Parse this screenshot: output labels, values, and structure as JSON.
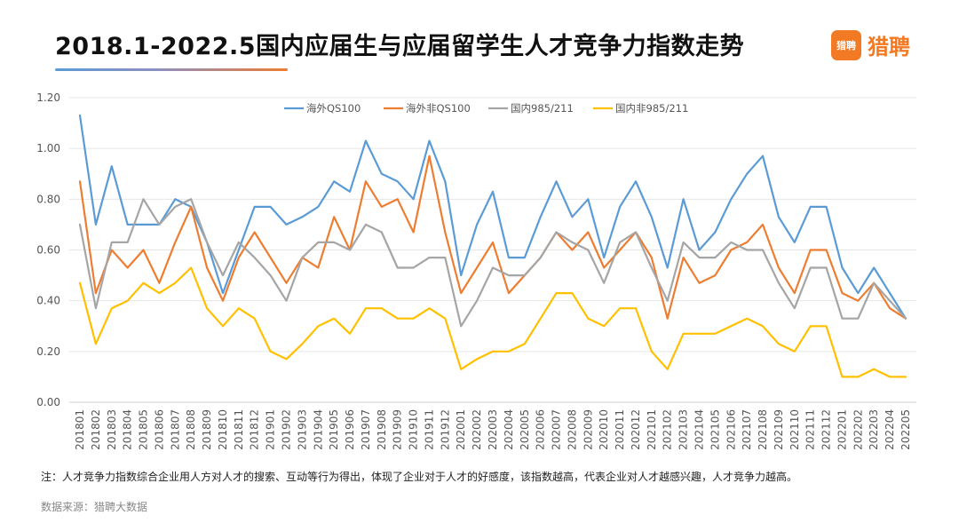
{
  "header": {
    "title": "2018.1-2022.5国内应届生与应届留学生人才竞争力指数走势",
    "brand_name": "猎聘",
    "brand_icon": "猎聘"
  },
  "footer": {
    "note": "注：人才竞争力指数综合企业用人方对人才的搜索、互动等行为得出，体现了企业对于人才的好感度，该指数越高，代表企业对人才越感兴趣，人才竞争力越高。",
    "source": "数据来源：猎聘大数据"
  },
  "chart_data": {
    "type": "line",
    "title": "2018.1-2022.5国内应届生与应届留学生人才竞争力指数走势",
    "xlabel": "",
    "ylabel": "",
    "ylim": [
      0,
      1.2
    ],
    "yticks": [
      "0.00",
      "0.20",
      "0.40",
      "0.60",
      "0.80",
      "1.00",
      "1.20"
    ],
    "grid": true,
    "legend_position": "top",
    "categories": [
      "201801",
      "201802",
      "201803",
      "201804",
      "201805",
      "201806",
      "201807",
      "201808",
      "201809",
      "201810",
      "201811",
      "201812",
      "201901",
      "201902",
      "201903",
      "201904",
      "201905",
      "201906",
      "201907",
      "201908",
      "201909",
      "201910",
      "201911",
      "201912",
      "202001",
      "202002",
      "202003",
      "202004",
      "202005",
      "202006",
      "202007",
      "202008",
      "202009",
      "202010",
      "202011",
      "202012",
      "202101",
      "202102",
      "202103",
      "202104",
      "202105",
      "202106",
      "202107",
      "202108",
      "202109",
      "202110",
      "202111",
      "202112",
      "202201",
      "202202",
      "202203",
      "202204",
      "202205"
    ],
    "series": [
      {
        "name": "海外QS100",
        "color": "#5b9bd5",
        "values": [
          1.13,
          0.7,
          0.93,
          0.7,
          0.7,
          0.7,
          0.8,
          0.77,
          0.63,
          0.43,
          0.6,
          0.77,
          0.77,
          0.7,
          0.73,
          0.77,
          0.87,
          0.83,
          1.03,
          0.9,
          0.87,
          0.8,
          1.03,
          0.87,
          0.5,
          0.7,
          0.83,
          0.57,
          0.57,
          0.73,
          0.87,
          0.73,
          0.8,
          0.57,
          0.77,
          0.87,
          0.73,
          0.53,
          0.8,
          0.6,
          0.67,
          0.8,
          0.9,
          0.97,
          0.73,
          0.63,
          0.77,
          0.77,
          0.53,
          0.43,
          0.53,
          0.43,
          0.33
        ]
      },
      {
        "name": "海外非QS100",
        "color": "#ed7d31",
        "values": [
          0.87,
          0.43,
          0.6,
          0.53,
          0.6,
          0.47,
          0.63,
          0.77,
          0.53,
          0.4,
          0.57,
          0.67,
          0.57,
          0.47,
          0.57,
          0.53,
          0.73,
          0.6,
          0.87,
          0.77,
          0.8,
          0.67,
          0.97,
          0.67,
          0.43,
          0.53,
          0.63,
          0.43,
          0.5,
          0.57,
          0.67,
          0.6,
          0.67,
          0.53,
          0.6,
          0.67,
          0.57,
          0.33,
          0.57,
          0.47,
          0.5,
          0.6,
          0.63,
          0.7,
          0.53,
          0.43,
          0.6,
          0.6,
          0.43,
          0.4,
          0.47,
          0.37,
          0.33
        ]
      },
      {
        "name": "国内985/211",
        "color": "#a5a5a5",
        "values": [
          0.7,
          0.37,
          0.63,
          0.63,
          0.8,
          0.7,
          0.77,
          0.8,
          0.63,
          0.5,
          0.63,
          0.57,
          0.5,
          0.4,
          0.57,
          0.63,
          0.63,
          0.6,
          0.7,
          0.67,
          0.53,
          0.53,
          0.57,
          0.57,
          0.3,
          0.4,
          0.53,
          0.5,
          0.5,
          0.57,
          0.67,
          0.63,
          0.6,
          0.47,
          0.63,
          0.67,
          0.53,
          0.4,
          0.63,
          0.57,
          0.57,
          0.63,
          0.6,
          0.6,
          0.47,
          0.37,
          0.53,
          0.53,
          0.33,
          0.33,
          0.47,
          0.4,
          0.33
        ]
      },
      {
        "name": "国内非985/211",
        "color": "#ffc000",
        "values": [
          0.47,
          0.23,
          0.37,
          0.4,
          0.47,
          0.43,
          0.47,
          0.53,
          0.37,
          0.3,
          0.37,
          0.33,
          0.2,
          0.17,
          0.23,
          0.3,
          0.33,
          0.27,
          0.37,
          0.37,
          0.33,
          0.33,
          0.37,
          0.33,
          0.13,
          0.17,
          0.2,
          0.2,
          0.23,
          0.33,
          0.43,
          0.43,
          0.33,
          0.3,
          0.37,
          0.37,
          0.2,
          0.13,
          0.27,
          0.27,
          0.27,
          0.3,
          0.33,
          0.3,
          0.23,
          0.2,
          0.3,
          0.3,
          0.1,
          0.1,
          0.13,
          0.1,
          0.1
        ]
      }
    ]
  }
}
